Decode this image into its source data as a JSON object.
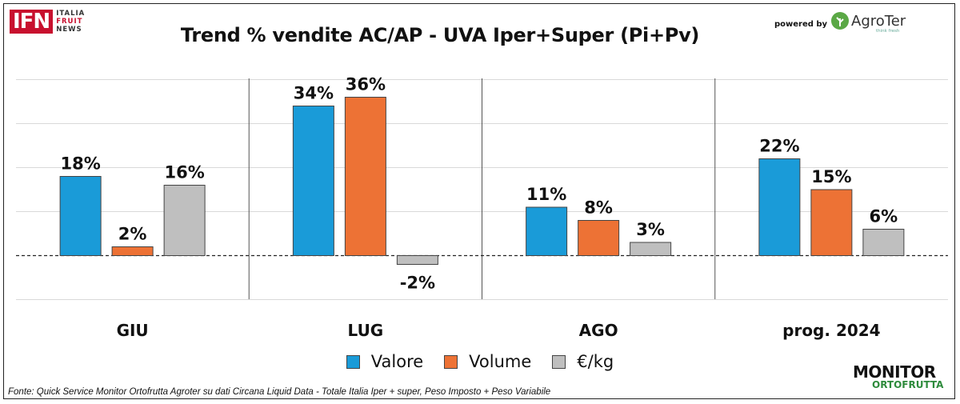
{
  "header": {
    "ifn_logo": "IFN",
    "ifn_sub": [
      "ITALIA",
      "FRUIT",
      "NEWS"
    ],
    "powered_by": "powered by",
    "agroter": "AgroTer",
    "agroter_tag": "think fresh"
  },
  "chart_data": {
    "type": "bar",
    "title": "Trend % vendite AC/AP - UVA  Iper+Super (Pi+Pv)",
    "categories": [
      "GIU",
      "LUG",
      "AGO",
      "prog. 2024"
    ],
    "series": [
      {
        "name": "Valore",
        "color": "#1a9bd8",
        "values": [
          18,
          34,
          11,
          22
        ],
        "labels": [
          "18%",
          "34%",
          "11%",
          "22%"
        ]
      },
      {
        "name": "Volume",
        "color": "#ed7235",
        "values": [
          2,
          36,
          8,
          15
        ],
        "labels": [
          "2%",
          "36%",
          "8%",
          "15%"
        ]
      },
      {
        "name": "€/kg",
        "color": "#bfbfbf",
        "values": [
          16,
          -2,
          3,
          6
        ],
        "labels": [
          "16%",
          "-2%",
          "3%",
          "6%"
        ]
      }
    ],
    "ylim": [
      -10,
      40
    ],
    "grid": true,
    "legend_position": "bottom"
  },
  "footer": {
    "source": "Fonte: Quick Service Monitor Ortofrutta Agroter su dati Circana Liquid Data - Totale Italia Iper + super, Peso Imposto + Peso Variabile",
    "monitor_line1": "MONITOR",
    "monitor_line2": "ORTOFRUTTA"
  }
}
